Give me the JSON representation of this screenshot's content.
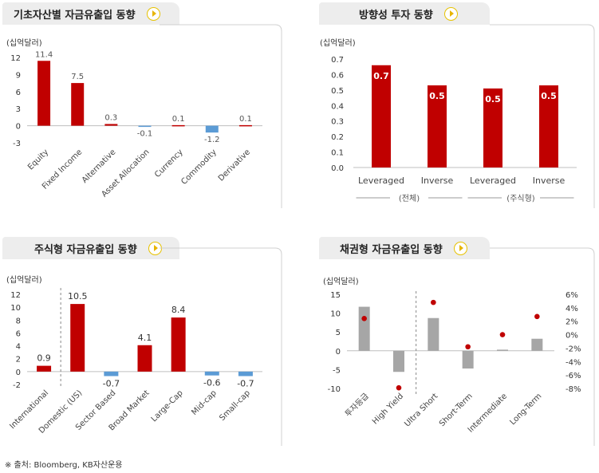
{
  "source": "※ 출처: Bloomberg, KB자산운용",
  "colors": {
    "pos": "#c00000",
    "neg": "#5b9bd5",
    "gray": "#a6a6a6",
    "dot": "#c00000"
  },
  "chart_data": [
    {
      "id": "p1",
      "type": "bar",
      "title": "기초자산별 자금유출입 동향",
      "unit": "(십억달러)",
      "categories": [
        "Equity",
        "Fixed Income",
        "Alternative",
        "Asset Allocation",
        "Currency",
        "Commodity",
        "Derivative"
      ],
      "values": [
        11.4,
        7.5,
        0.3,
        -0.1,
        0.1,
        -1.2,
        0.1
      ],
      "labels": [
        "11.4",
        "7.5",
        "0.3",
        "-0.1",
        "0.1",
        "-1.2",
        "0.1"
      ],
      "ylim": [
        -3,
        12
      ],
      "yticks": [
        -3,
        0,
        3,
        6,
        9,
        12
      ]
    },
    {
      "id": "p2",
      "type": "bar",
      "title": "방향성 투자 동향",
      "unit": "(십억달러)",
      "categories": [
        "Leveraged",
        "Inverse",
        "Leveraged",
        "Inverse"
      ],
      "values": [
        0.66,
        0.53,
        0.51,
        0.53
      ],
      "labels": [
        "0.7",
        "0.5",
        "0.5",
        "0.5"
      ],
      "ylim": [
        0,
        0.7
      ],
      "yticks": [
        "0.0",
        "0.1",
        "0.2",
        "0.3",
        "0.4",
        "0.5",
        "0.6",
        "0.7"
      ],
      "groups": [
        "(전체)",
        "(주식형)"
      ]
    },
    {
      "id": "p3",
      "type": "bar",
      "title": "주식형 자금유출입 동향",
      "unit": "(십억달러)",
      "categories": [
        "International",
        "Domestic (US)",
        "Sector Based",
        "Broad Market",
        "Large-Cap",
        "Mid-cap",
        "Small-cap"
      ],
      "values": [
        0.9,
        10.5,
        -0.7,
        4.1,
        8.4,
        -0.6,
        -0.7
      ],
      "labels": [
        "0.9",
        "10.5",
        "-0.7",
        "4.1",
        "8.4",
        "-0.6",
        "-0.7"
      ],
      "ylim": [
        -2,
        12
      ],
      "yticks": [
        -2,
        0,
        2,
        4,
        6,
        8,
        10,
        12
      ]
    },
    {
      "id": "p4",
      "type": "bar+scatter",
      "title": "채권형 자금유출입 동향",
      "unit": "(십억달러)",
      "categories": [
        "투자등급",
        "High Yield",
        "Ultra Short",
        "Short-Term",
        "Intermediate",
        "Long-Term"
      ],
      "values": [
        11.7,
        -5.6,
        8.7,
        -4.7,
        0.3,
        3.2
      ],
      "dots_pct": [
        2.4,
        -7.9,
        4.8,
        -1.8,
        0.0,
        2.7
      ],
      "ylim": [
        -10,
        15
      ],
      "yticks": [
        -10,
        -5,
        0,
        5,
        10,
        15
      ],
      "y2lim": [
        -8,
        6
      ],
      "y2ticks": [
        "-8%",
        "-6%",
        "-4%",
        "-2%",
        "0%",
        "2%",
        "4%",
        "6%"
      ]
    }
  ]
}
